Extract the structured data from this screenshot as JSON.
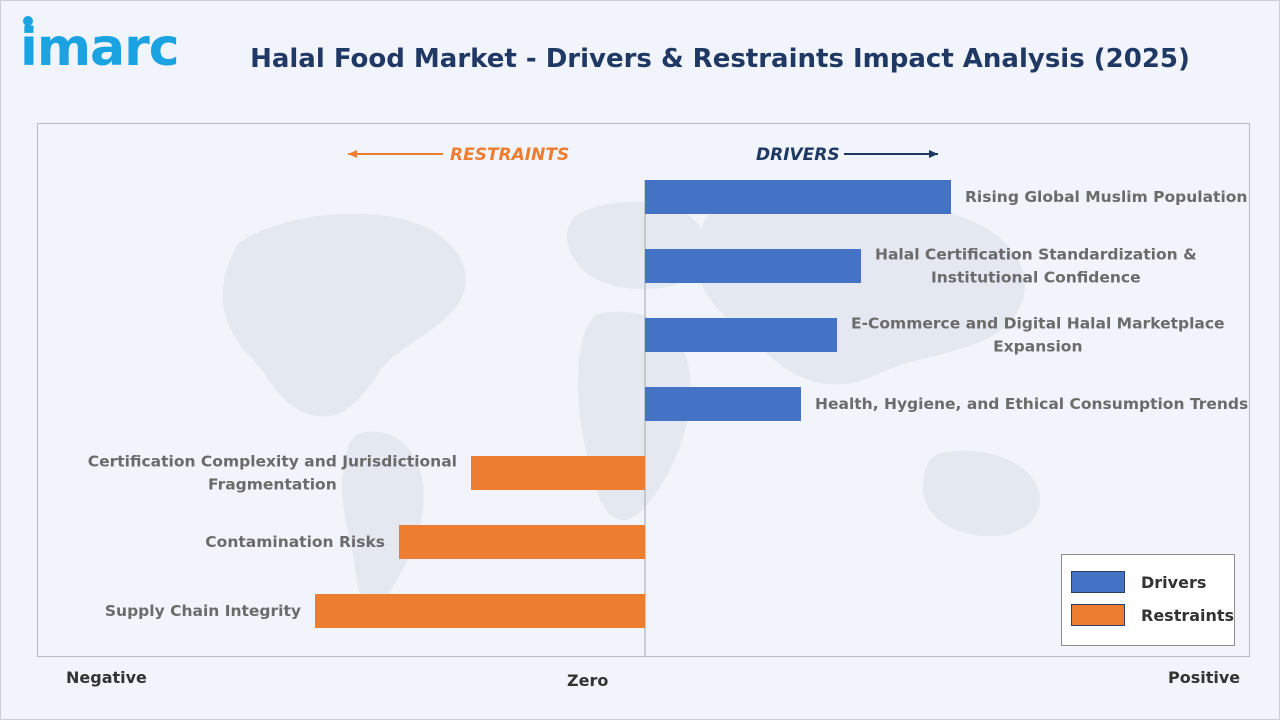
{
  "brand": {
    "logo_text": "imarc",
    "color": "#1aa3e0"
  },
  "header": {
    "title": "Halal Food Market - Drivers & Restraints Impact Analysis (2025)"
  },
  "chart_data": {
    "type": "bar",
    "orientation": "horizontal-diverging",
    "title": "Halal Food Market - Drivers & Restraints Impact Analysis (2025)",
    "direction_labels": {
      "left": "RESTRAINTS",
      "right": "DRIVERS"
    },
    "axis_labels": {
      "negative": "Negative",
      "zero": "Zero",
      "positive": "Positive"
    },
    "xlim": [
      -100,
      100
    ],
    "categories": [
      [
        "Rising Global Muslim Population"
      ],
      [
        "Halal Certification Standardization &",
        "Institutional Confidence"
      ],
      [
        "E-Commerce and Digital Halal Marketplace",
        "Expansion"
      ],
      [
        "Health, Hygiene, and Ethical Consumption Trends"
      ],
      [
        "Certification Complexity and Jurisdictional",
        "Fragmentation"
      ],
      [
        "Contamination Risks"
      ],
      [
        "Supply Chain Integrity"
      ]
    ],
    "series": [
      {
        "name": "Drivers",
        "color": "#4472c4",
        "values": [
          51,
          36,
          32,
          26,
          null,
          null,
          null
        ]
      },
      {
        "name": "Restraints",
        "color": "#ed7d31",
        "values": [
          null,
          null,
          null,
          null,
          -29,
          -41,
          -55
        ]
      }
    ],
    "legend": {
      "placement": "bottom-right",
      "items": [
        "Drivers",
        "Restraints"
      ]
    },
    "grid": false
  }
}
